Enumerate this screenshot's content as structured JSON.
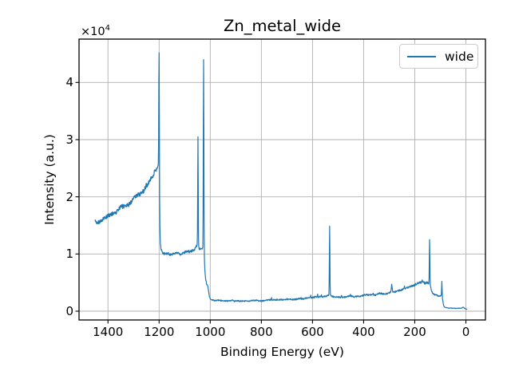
{
  "figure": {
    "background": "#ffffff"
  },
  "chart_data": {
    "type": "line",
    "title": "Zn_metal_wide",
    "xlabel": "Binding Energy (eV)",
    "ylabel": "Intensity (a.u.)",
    "y_offset": {
      "multiplier": "×10",
      "exponent": "4"
    },
    "legend": {
      "position": "upper right",
      "entries": [
        {
          "label": "wide",
          "color": "#1f77b4"
        }
      ]
    },
    "grid": true,
    "x_inverted": true,
    "xlim": [
      1513.2,
      -76.5
    ],
    "ylim": [
      -1535,
      47580
    ],
    "x_ticks": [
      1400,
      1200,
      1000,
      800,
      600,
      400,
      200,
      0
    ],
    "y_ticks": [
      0,
      1,
      2,
      3,
      4
    ],
    "y_tick_scale": 10000,
    "colors": {
      "line": "#1f77b4",
      "grid": "#b0b0b0",
      "axes": "#000000",
      "legend_border": "#cccccc"
    },
    "series": [
      {
        "name": "wide",
        "x_start": 1451,
        "x_end": -5,
        "x_step": 1,
        "baseline_anchors": [
          [
            1451,
            15800,
            450
          ],
          [
            1445,
            15400,
            450
          ],
          [
            1438,
            15700,
            450
          ],
          [
            1430,
            16000,
            450
          ],
          [
            1420,
            16100,
            450
          ],
          [
            1410,
            16300,
            450
          ],
          [
            1400,
            16600,
            450
          ],
          [
            1390,
            16900,
            450
          ],
          [
            1380,
            17200,
            450
          ],
          [
            1370,
            17400,
            450
          ],
          [
            1360,
            17700,
            450
          ],
          [
            1350,
            18000,
            450
          ],
          [
            1340,
            18300,
            450
          ],
          [
            1330,
            18600,
            450
          ],
          [
            1320,
            18900,
            450
          ],
          [
            1310,
            19200,
            450
          ],
          [
            1300,
            19600,
            470
          ],
          [
            1290,
            20000,
            480
          ],
          [
            1280,
            20400,
            480
          ],
          [
            1270,
            20800,
            480
          ],
          [
            1260,
            21300,
            490
          ],
          [
            1250,
            21900,
            500
          ],
          [
            1240,
            22500,
            500
          ],
          [
            1230,
            23200,
            500
          ],
          [
            1222,
            23900,
            500
          ],
          [
            1215,
            24500,
            480
          ],
          [
            1209,
            25000,
            450
          ],
          [
            1204,
            25500,
            350
          ],
          [
            1201,
            25600,
            300
          ],
          [
            1198,
            16000,
            300
          ],
          [
            1195,
            11500,
            300
          ],
          [
            1190,
            10300,
            280
          ],
          [
            1180,
            10000,
            280
          ],
          [
            1165,
            9900,
            280
          ],
          [
            1150,
            9900,
            270
          ],
          [
            1135,
            9950,
            270
          ],
          [
            1120,
            10000,
            270
          ],
          [
            1105,
            10150,
            270
          ],
          [
            1090,
            10350,
            270
          ],
          [
            1075,
            10600,
            270
          ],
          [
            1063,
            10900,
            260
          ],
          [
            1056,
            11300,
            220
          ],
          [
            1051,
            11500,
            200
          ],
          [
            1045,
            11100,
            200
          ],
          [
            1040,
            10850,
            220
          ],
          [
            1035,
            10850,
            220
          ],
          [
            1030,
            10950,
            200
          ],
          [
            1027.5,
            10500,
            180
          ],
          [
            1024,
            9600,
            180
          ],
          [
            1021,
            7200,
            160
          ],
          [
            1018,
            5600,
            150
          ],
          [
            1014,
            4700,
            150
          ],
          [
            1010,
            4400,
            150
          ],
          [
            1007,
            3800,
            140
          ],
          [
            1003,
            2600,
            130
          ],
          [
            999,
            2050,
            130
          ],
          [
            990,
            1900,
            130
          ],
          [
            975,
            1850,
            130
          ],
          [
            950,
            1800,
            130
          ],
          [
            925,
            1780,
            130
          ],
          [
            900,
            1780,
            130
          ],
          [
            875,
            1800,
            130
          ],
          [
            850,
            1820,
            130
          ],
          [
            825,
            1850,
            130
          ],
          [
            800,
            1880,
            140
          ],
          [
            775,
            1930,
            140
          ],
          [
            750,
            1980,
            140
          ],
          [
            725,
            2020,
            150
          ],
          [
            700,
            2060,
            150
          ],
          [
            675,
            2110,
            150
          ],
          [
            650,
            2170,
            160
          ],
          [
            625,
            2250,
            160
          ],
          [
            600,
            2350,
            170
          ],
          [
            585,
            2450,
            180
          ],
          [
            570,
            2550,
            180
          ],
          [
            558,
            2650,
            180
          ],
          [
            548,
            2720,
            170
          ],
          [
            540,
            2760,
            160
          ],
          [
            536,
            2780,
            150
          ],
          [
            530,
            2760,
            150
          ],
          [
            526,
            2700,
            150
          ],
          [
            520,
            2600,
            150
          ],
          [
            510,
            2520,
            150
          ],
          [
            500,
            2480,
            150
          ],
          [
            490,
            2470,
            150
          ],
          [
            475,
            2480,
            150
          ],
          [
            460,
            2520,
            155
          ],
          [
            445,
            2570,
            155
          ],
          [
            430,
            2620,
            160
          ],
          [
            415,
            2680,
            160
          ],
          [
            400,
            2730,
            160
          ],
          [
            385,
            2790,
            165
          ],
          [
            370,
            2860,
            165
          ],
          [
            355,
            2930,
            170
          ],
          [
            340,
            3000,
            170
          ],
          [
            325,
            3080,
            175
          ],
          [
            310,
            3170,
            175
          ],
          [
            300,
            3240,
            180
          ],
          [
            294,
            3300,
            180
          ],
          [
            286,
            3420,
            180
          ],
          [
            278,
            3500,
            180
          ],
          [
            265,
            3620,
            185
          ],
          [
            250,
            3790,
            190
          ],
          [
            235,
            3980,
            195
          ],
          [
            222,
            4200,
            200
          ],
          [
            210,
            4420,
            210
          ],
          [
            200,
            4620,
            215
          ],
          [
            192,
            4800,
            220
          ],
          [
            184,
            4950,
            225
          ],
          [
            176,
            5060,
            230
          ],
          [
            168,
            5120,
            230
          ],
          [
            160,
            5100,
            225
          ],
          [
            153,
            5000,
            210
          ],
          [
            148,
            4880,
            180
          ],
          [
            144,
            4800,
            160
          ],
          [
            140,
            4700,
            160
          ],
          [
            137,
            4100,
            160
          ],
          [
            134,
            3400,
            160
          ],
          [
            130,
            3050,
            160
          ],
          [
            125,
            2900,
            155
          ],
          [
            120,
            2830,
            155
          ],
          [
            112,
            2750,
            150
          ],
          [
            105,
            2700,
            145
          ],
          [
            100,
            2700,
            120
          ],
          [
            96,
            2680,
            100
          ],
          [
            92,
            2300,
            90
          ],
          [
            89,
            1400,
            80
          ],
          [
            86,
            850,
            65
          ],
          [
            82,
            650,
            55
          ],
          [
            76,
            580,
            55
          ],
          [
            68,
            540,
            50
          ],
          [
            58,
            520,
            50
          ],
          [
            45,
            500,
            50
          ],
          [
            32,
            490,
            50
          ],
          [
            22,
            500,
            50
          ],
          [
            16,
            560,
            55
          ],
          [
            12,
            680,
            60
          ],
          [
            9,
            680,
            60
          ],
          [
            6,
            520,
            55
          ],
          [
            2,
            400,
            45
          ],
          [
            0,
            350,
            40
          ],
          [
            -5,
            300,
            40
          ]
        ],
        "peaks": [
          {
            "center": 1200,
            "amplitude": 23000,
            "sigma": 1.1
          },
          {
            "center": 1048,
            "amplitude": 19200,
            "sigma": 1.0
          },
          {
            "center": 1026,
            "amplitude": 34000,
            "sigma": 1.1
          },
          {
            "center": 533,
            "amplitude": 12200,
            "sigma": 1.0
          },
          {
            "center": 290,
            "amplitude": 1200,
            "sigma": 1.6
          },
          {
            "center": 142,
            "amplitude": 7800,
            "sigma": 1.0
          },
          {
            "center": 94,
            "amplitude": 2700,
            "sigma": 0.9
          },
          {
            "center": 760,
            "amplitude": 280,
            "sigma": 0.8
          },
          {
            "center": 700,
            "amplitude": 250,
            "sigma": 0.8
          },
          {
            "center": 645,
            "amplitude": 280,
            "sigma": 0.8
          },
          {
            "center": 607,
            "amplitude": 350,
            "sigma": 0.8
          },
          {
            "center": 580,
            "amplitude": 420,
            "sigma": 0.8
          },
          {
            "center": 565,
            "amplitude": 350,
            "sigma": 0.8
          },
          {
            "center": 487,
            "amplitude": 300,
            "sigma": 0.8
          },
          {
            "center": 452,
            "amplitude": 250,
            "sigma": 0.8
          },
          {
            "center": 363,
            "amplitude": 300,
            "sigma": 0.8
          },
          {
            "center": 240,
            "amplitude": 350,
            "sigma": 0.9
          },
          {
            "center": 171,
            "amplitude": 300,
            "sigma": 0.8
          }
        ]
      }
    ]
  }
}
